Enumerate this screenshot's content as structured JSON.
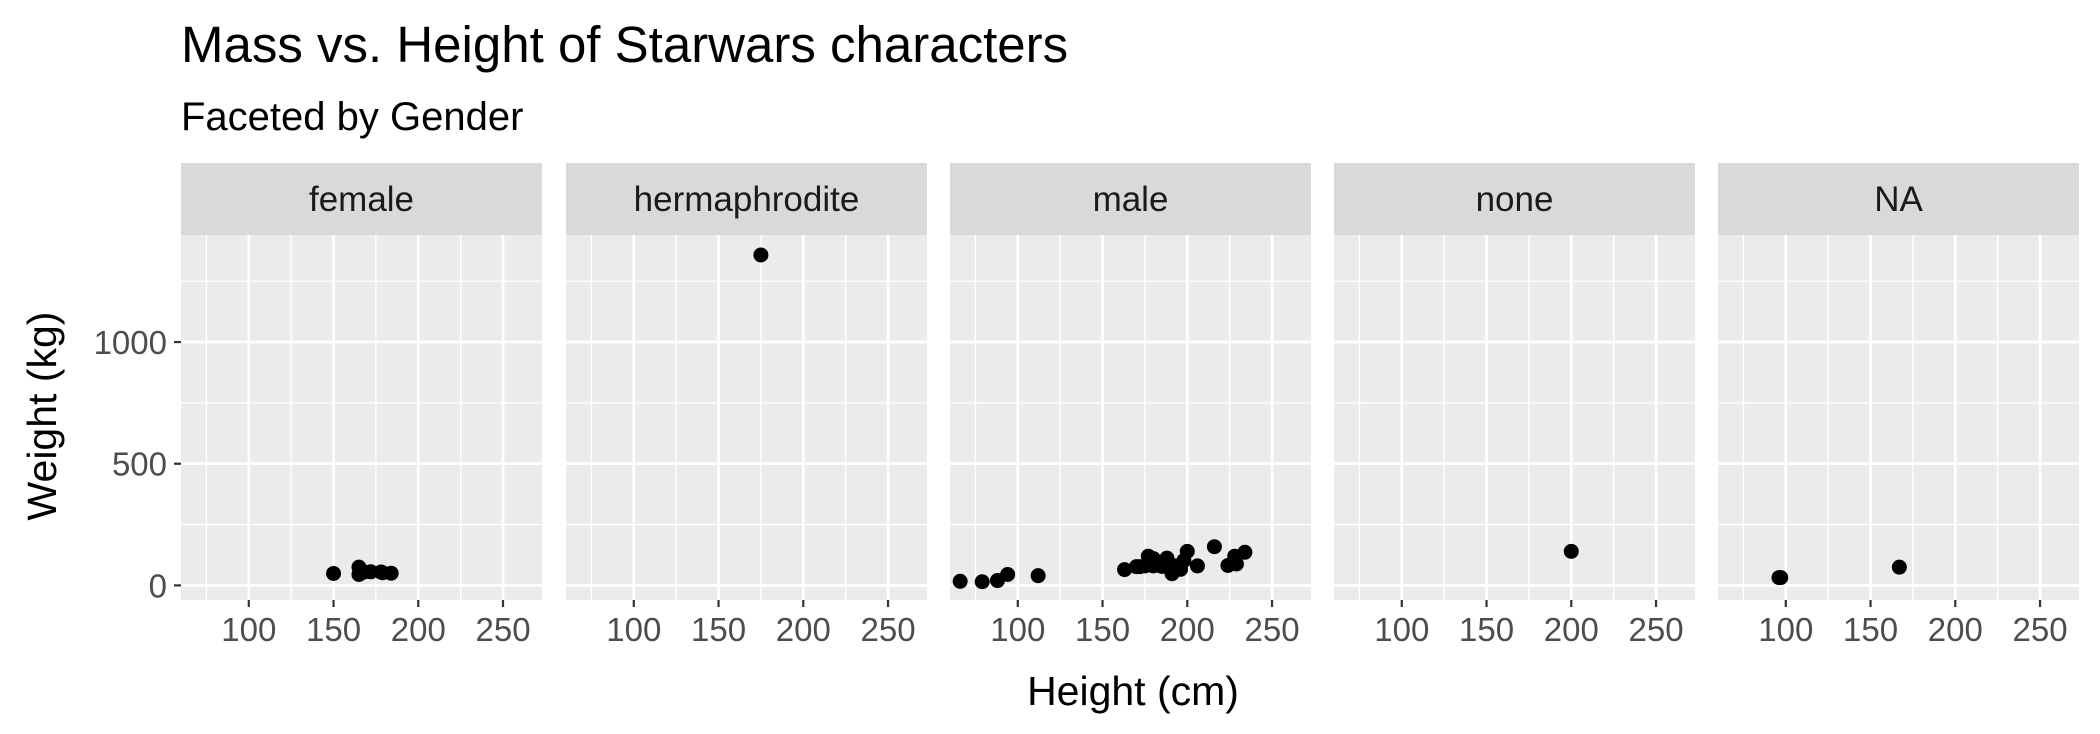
{
  "chart_data": {
    "type": "scatter",
    "title": "Mass vs. Height of Starwars characters",
    "subtitle": "Faceted by Gender",
    "xlabel": "Height (cm)",
    "ylabel": "Weight (kg)",
    "xlim": [
      60,
      273
    ],
    "ylim": [
      -60,
      1440
    ],
    "x_ticks": [
      100,
      150,
      200,
      250
    ],
    "y_ticks": [
      0,
      500,
      1000
    ],
    "grid": true,
    "facets": [
      {
        "name": "female",
        "points": [
          {
            "x": 150,
            "y": 49
          },
          {
            "x": 165,
            "y": 45
          },
          {
            "x": 165,
            "y": 75
          },
          {
            "x": 168,
            "y": 55
          },
          {
            "x": 178,
            "y": 55
          },
          {
            "x": 172,
            "y": 56
          },
          {
            "x": 184,
            "y": 50
          },
          {
            "x": 179,
            "y": 52
          },
          {
            "x": 166,
            "y": 50
          }
        ]
      },
      {
        "name": "hermaphrodite",
        "points": [
          {
            "x": 175,
            "y": 1358
          }
        ]
      },
      {
        "name": "male",
        "points": [
          {
            "x": 66,
            "y": 17
          },
          {
            "x": 79,
            "y": 15
          },
          {
            "x": 88,
            "y": 20
          },
          {
            "x": 94,
            "y": 45
          },
          {
            "x": 112,
            "y": 40
          },
          {
            "x": 163,
            "y": 65
          },
          {
            "x": 170,
            "y": 77
          },
          {
            "x": 175,
            "y": 80
          },
          {
            "x": 177,
            "y": 120
          },
          {
            "x": 180,
            "y": 80
          },
          {
            "x": 183,
            "y": 84
          },
          {
            "x": 185,
            "y": 78
          },
          {
            "x": 188,
            "y": 84
          },
          {
            "x": 188,
            "y": 112
          },
          {
            "x": 191,
            "y": 80
          },
          {
            "x": 191,
            "y": 48
          },
          {
            "x": 193,
            "y": 80
          },
          {
            "x": 196,
            "y": 66
          },
          {
            "x": 198,
            "y": 102
          },
          {
            "x": 200,
            "y": 140
          },
          {
            "x": 206,
            "y": 80
          },
          {
            "x": 216,
            "y": 159
          },
          {
            "x": 224,
            "y": 82
          },
          {
            "x": 228,
            "y": 120
          },
          {
            "x": 229,
            "y": 88
          },
          {
            "x": 234,
            "y": 136
          },
          {
            "x": 172,
            "y": 77
          },
          {
            "x": 180,
            "y": 110
          }
        ]
      },
      {
        "name": "none",
        "points": [
          {
            "x": 200,
            "y": 140
          }
        ]
      },
      {
        "name": "NA",
        "points": [
          {
            "x": 96,
            "y": 32
          },
          {
            "x": 97,
            "y": 32
          },
          {
            "x": 167,
            "y": 75
          }
        ]
      }
    ]
  }
}
